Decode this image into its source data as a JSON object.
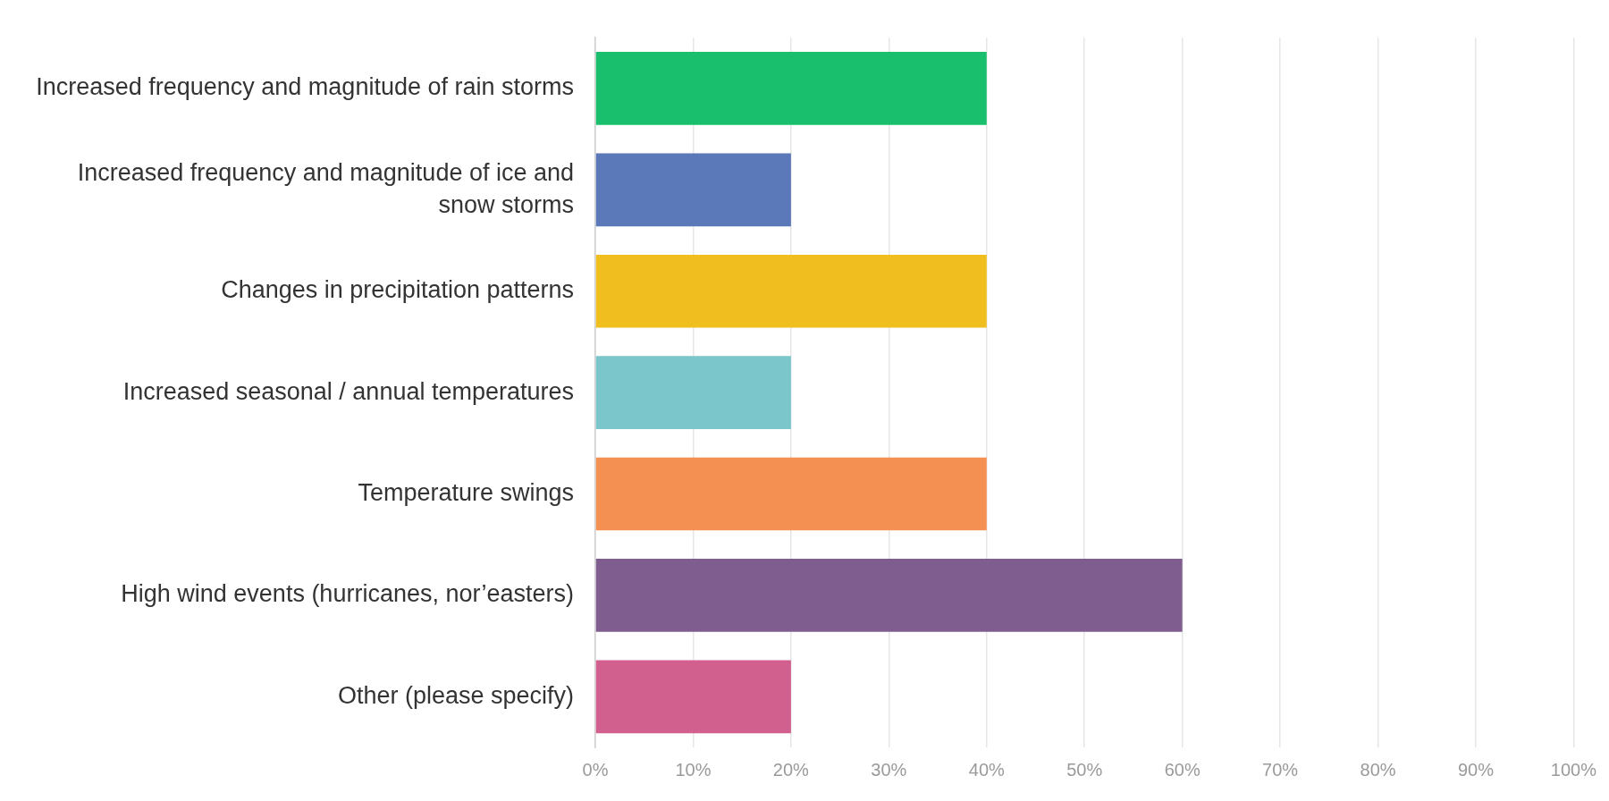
{
  "chart_data": {
    "type": "bar",
    "orientation": "horizontal",
    "categories": [
      "Increased frequency and magnitude of rain storms",
      "Increased frequency and magnitude of ice and snow storms",
      "Changes in precipitation patterns",
      "Increased seasonal / annual temperatures",
      "Temperature swings",
      "High wind events (hurricanes, nor’easters)",
      "Other (please specify)"
    ],
    "values": [
      40,
      20,
      40,
      20,
      40,
      60,
      20
    ],
    "colors": [
      "#1abf6e",
      "#5b78b8",
      "#f0be1f",
      "#7ac6cb",
      "#f59053",
      "#7f5d8f",
      "#d1608f"
    ],
    "xlim": [
      0,
      100
    ],
    "xticks": [
      {
        "value": 0,
        "label": "0%"
      },
      {
        "value": 10,
        "label": "10%"
      },
      {
        "value": 20,
        "label": "20%"
      },
      {
        "value": 30,
        "label": "30%"
      },
      {
        "value": 40,
        "label": "40%"
      },
      {
        "value": 50,
        "label": "50%"
      },
      {
        "value": 60,
        "label": "60%"
      },
      {
        "value": 70,
        "label": "70%"
      },
      {
        "value": 80,
        "label": "80%"
      },
      {
        "value": 90,
        "label": "90%"
      },
      {
        "value": 100,
        "label": "100%"
      }
    ],
    "grid": "x",
    "legend": false
  }
}
